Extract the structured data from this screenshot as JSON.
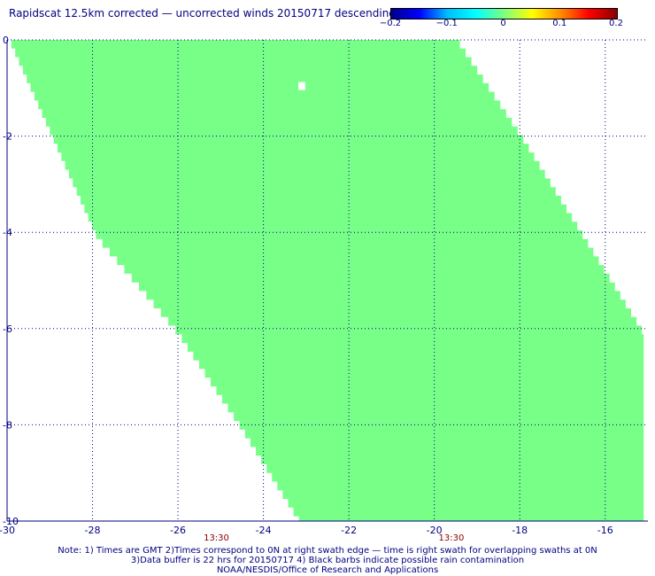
{
  "title": "Rapidscat 12.5km corrected — uncorrected winds 20150717 descending",
  "colorbar": {
    "ticks": [
      "−0.2",
      "−0.1",
      "0",
      "0.1",
      "0.2"
    ],
    "range": [
      -0.2,
      0.2
    ],
    "colors": [
      "#00008b",
      "#0000ff",
      "#00bfff",
      "#00ffff",
      "#7fff7f",
      "#ffff00",
      "#ff8c00",
      "#ff0000",
      "#8b0000"
    ]
  },
  "map": {
    "lon_range": [
      -30,
      -15
    ],
    "lat_range": [
      -10,
      0
    ],
    "x_ticks": [
      "-30",
      "-28",
      "-26",
      "-24",
      "-22",
      "-20",
      "-18",
      "-16"
    ],
    "y_ticks": [
      "0",
      "-2",
      "-4",
      "-6",
      "-8",
      "-10"
    ],
    "grid": "dotted",
    "swath_fill": "#77ff88",
    "swath_value": 0,
    "gap_cell": {
      "lon": -23.1,
      "lat": -0.95
    },
    "swath_left_edge": [
      {
        "lat": 0,
        "lon": -29.9
      },
      {
        "lat": -2,
        "lon": -28.9
      },
      {
        "lat": -4,
        "lon": -27.9
      },
      {
        "lat": -6,
        "lon": -26.0
      },
      {
        "lat": -8,
        "lon": -24.5
      },
      {
        "lat": -10,
        "lon": -23.1
      }
    ],
    "swath_right_edge": [
      {
        "lat": 0,
        "lon": -19.4
      },
      {
        "lat": -2,
        "lon": -17.9
      },
      {
        "lat": -4,
        "lon": -16.5
      },
      {
        "lat": -6,
        "lon": -15.1
      },
      {
        "lat": -10,
        "lon": -15.1
      }
    ],
    "times": [
      "13:30",
      "13:30"
    ]
  },
  "notes": {
    "line1": "Note: 1) Times are GMT 2)Times correspond to 0N at right swath edge — time is right swath for overlapping swaths at 0N",
    "line2": "3)Data buffer is 22 hrs for 20150717 4) Black barbs indicate possible rain contamination",
    "line3": "NOAA/NESDIS/Office of Research and Applications"
  }
}
